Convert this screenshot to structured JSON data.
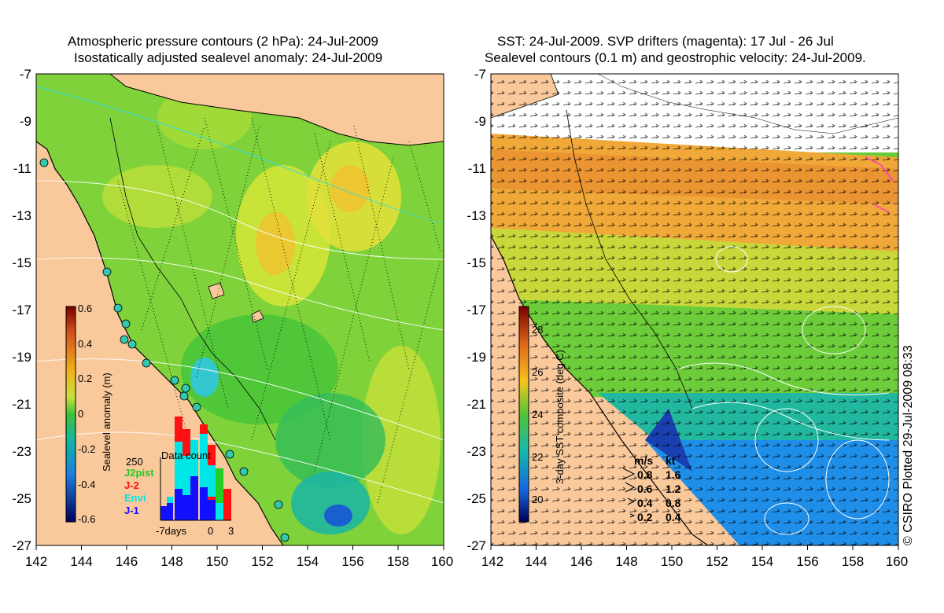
{
  "left_panel": {
    "title_line1": "Atmospheric pressure contours (2 hPa): 24-Jul-2009",
    "title_line2": "Isostatically adjusted sealevel anomaly: 24-Jul-2009",
    "colorbar": {
      "label": "Sealevel anomaly (m)",
      "ticks": [
        "0.6",
        "0.4",
        "0.2",
        "0",
        "-0.2",
        "-0.4",
        "-0.6"
      ]
    },
    "data_count": {
      "title": "Data count",
      "ymax_label": "250",
      "legend": [
        {
          "name": "J2pist",
          "color": "#22cc22"
        },
        {
          "name": "J-2",
          "color": "#ff1111"
        },
        {
          "name": "Envi",
          "color": "#00e5e5"
        },
        {
          "name": "J-1",
          "color": "#1111ff"
        }
      ],
      "x_left": "-7days",
      "x_mid": "0",
      "x_right": "3"
    }
  },
  "right_panel": {
    "title_line1": "SST: 24-Jul-2009. SVP drifters (magenta): 17 Jul - 26 Jul",
    "title_line2": "Sealevel contours (0.1 m) and geostrophic velocity: 24-Jul-2009.",
    "colorbar": {
      "label": "3-day SST composite (deg C)",
      "ticks": [
        "28",
        "26",
        "24",
        "22",
        "20"
      ]
    },
    "velocity_legend": {
      "header_ms": "m/s",
      "header_kt": "kt",
      "rows": [
        {
          "ms": "0.8",
          "kt": "1.6"
        },
        {
          "ms": "0.6",
          "kt": "1.2"
        },
        {
          "ms": "0.4",
          "kt": "0.8"
        },
        {
          "ms": "0.2",
          "kt": "0.4"
        }
      ]
    }
  },
  "axes": {
    "y_ticks": [
      "-7",
      "-9",
      "-11",
      "-13",
      "-15",
      "-17",
      "-19",
      "-21",
      "-23",
      "-25",
      "-27"
    ],
    "x_ticks": [
      "142",
      "144",
      "146",
      "148",
      "150",
      "152",
      "154",
      "156",
      "158",
      "160"
    ]
  },
  "credit": "© CSIRO Plotted 29-Jul-2009 08:33",
  "colors": {
    "land": "#f9c89b",
    "ocean_green": "#7fd23a",
    "white": "#ffffff"
  }
}
